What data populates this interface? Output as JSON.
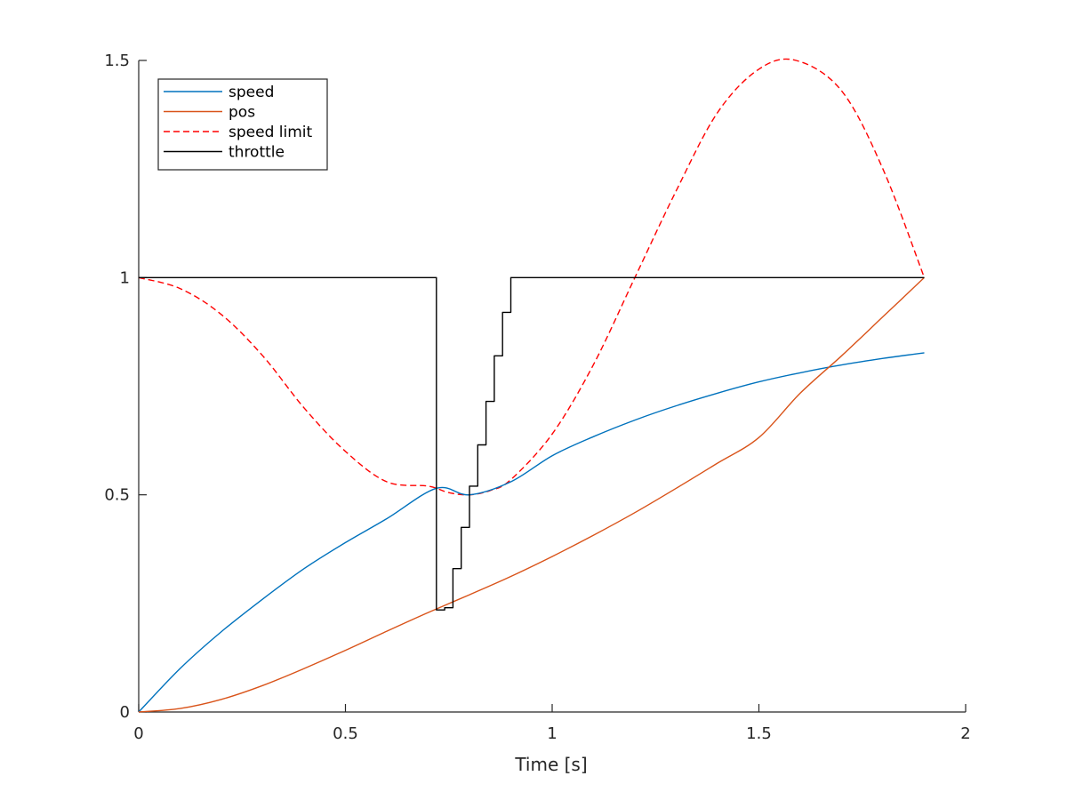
{
  "chart_data": {
    "type": "line",
    "title": "",
    "xlabel": "Time [s]",
    "ylabel": "",
    "xlim": [
      0,
      2
    ],
    "ylim": [
      0,
      1.5
    ],
    "xticks": [
      {
        "value": 0,
        "label": "0"
      },
      {
        "value": 0.5,
        "label": "0.5"
      },
      {
        "value": 1,
        "label": "1"
      },
      {
        "value": 1.5,
        "label": "1.5"
      },
      {
        "value": 2,
        "label": "2"
      }
    ],
    "yticks": [
      {
        "value": 0,
        "label": "0"
      },
      {
        "value": 0.5,
        "label": "0.5"
      },
      {
        "value": 1,
        "label": "1"
      },
      {
        "value": 1.5,
        "label": "1.5"
      }
    ],
    "grid": false,
    "legend_position": "top-left",
    "series": [
      {
        "name": "speed",
        "color": "#0072bd",
        "style": "solid",
        "step": false,
        "x": [
          0,
          0.1,
          0.2,
          0.3,
          0.4,
          0.5,
          0.6,
          0.72,
          0.8,
          0.9,
          1.0,
          1.1,
          1.2,
          1.3,
          1.4,
          1.5,
          1.6,
          1.7,
          1.8,
          1.9
        ],
        "y": [
          0,
          0.1,
          0.185,
          0.26,
          0.33,
          0.39,
          0.445,
          0.515,
          0.5,
          0.53,
          0.59,
          0.634,
          0.672,
          0.705,
          0.734,
          0.76,
          0.781,
          0.799,
          0.814,
          0.827
        ]
      },
      {
        "name": "pos",
        "color": "#d95319",
        "style": "solid",
        "step": false,
        "x": [
          0,
          0.1,
          0.2,
          0.3,
          0.4,
          0.5,
          0.6,
          0.7,
          0.8,
          0.9,
          1.0,
          1.1,
          1.2,
          1.3,
          1.4,
          1.5,
          1.6,
          1.7,
          1.8,
          1.9
        ],
        "y": [
          0,
          0.008,
          0.029,
          0.061,
          0.1,
          0.142,
          0.186,
          0.229,
          0.27,
          0.312,
          0.358,
          0.407,
          0.459,
          0.515,
          0.573,
          0.632,
          0.734,
          0.82,
          0.91,
          1.0
        ]
      },
      {
        "name": "speed limit",
        "color": "#ff0000",
        "style": "dashed",
        "step": false,
        "x": [
          0,
          0.1,
          0.2,
          0.3,
          0.4,
          0.5,
          0.6,
          0.7,
          0.75,
          0.8,
          0.85,
          0.9,
          1.0,
          1.1,
          1.2,
          1.3,
          1.4,
          1.5,
          1.59,
          1.7,
          1.8,
          1.9
        ],
        "y": [
          1.0,
          0.975,
          0.915,
          0.82,
          0.7,
          0.6,
          0.53,
          0.52,
          0.505,
          0.5,
          0.51,
          0.535,
          0.64,
          0.8,
          1.0,
          1.2,
          1.38,
          1.48,
          1.5,
          1.43,
          1.25,
          1.0
        ]
      },
      {
        "name": "throttle",
        "color": "#000000",
        "style": "solid",
        "step": true,
        "x": [
          0,
          0.72,
          0.74,
          0.76,
          0.78,
          0.8,
          0.82,
          0.84,
          0.86,
          0.88,
          0.9,
          1.9
        ],
        "y": [
          1.0,
          0.235,
          0.24,
          0.33,
          0.425,
          0.52,
          0.615,
          0.715,
          0.82,
          0.92,
          1.0,
          1.0
        ]
      }
    ]
  }
}
